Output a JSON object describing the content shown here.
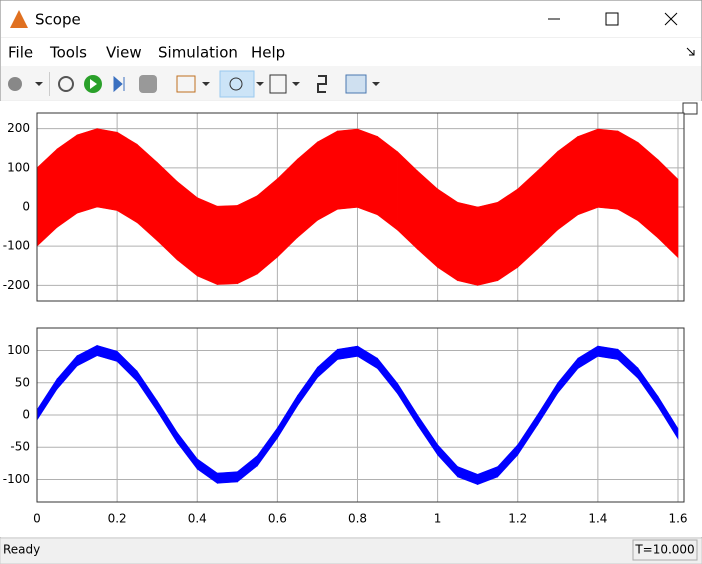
{
  "window": {
    "title": "Scope",
    "menu": [
      "File",
      "Tools",
      "View",
      "Simulation",
      "Help"
    ],
    "status": "Ready",
    "time": "T=10.000"
  },
  "chart_data": [
    {
      "type": "band",
      "grid": true,
      "xlim": [
        0,
        1.615
      ],
      "ylim": [
        -240,
        240
      ],
      "yticks": [
        -200,
        -100,
        0,
        100,
        200
      ],
      "xticks": [
        0,
        0.2,
        0.4,
        0.6,
        0.8,
        1,
        1.2,
        1.4,
        1.6
      ],
      "x": [
        0,
        0.05,
        0.1,
        0.15,
        0.2,
        0.25,
        0.3,
        0.35,
        0.4,
        0.45,
        0.5,
        0.55,
        0.6,
        0.65,
        0.7,
        0.75,
        0.8,
        0.85,
        0.9,
        0.95,
        1,
        1.05,
        1.1,
        1.15,
        1.2,
        1.25,
        1.3,
        1.35,
        1.4,
        1.45,
        1.5,
        1.55,
        1.6
      ],
      "series": [
        {
          "color": "#ff0000",
          "upper": [
            100,
            148,
            184,
            200,
            191,
            160,
            114,
            65,
            24,
            2,
            4,
            29,
            72,
            122,
            166,
            194,
            199,
            180,
            141,
            92,
            46,
            12,
            0,
            12,
            46,
            93,
            142,
            180,
            199,
            194,
            165,
            121,
            71
          ],
          "lower": [
            -100,
            -52,
            -16,
            0,
            -9,
            -40,
            -86,
            -135,
            -176,
            -198,
            -196,
            -171,
            -128,
            -78,
            -34,
            -6,
            -1,
            -20,
            -59,
            -108,
            -154,
            -188,
            -200,
            -188,
            -154,
            -107,
            -58,
            -20,
            -1,
            -6,
            -35,
            -79,
            -129
          ]
        }
      ]
    },
    {
      "type": "band",
      "grid": true,
      "xlim": [
        0,
        1.615
      ],
      "ylim": [
        -135,
        135
      ],
      "yticks": [
        -100,
        -50,
        0,
        50,
        100
      ],
      "xticks": [
        0,
        0.2,
        0.4,
        0.6,
        0.8,
        1,
        1.2,
        1.4,
        1.6
      ],
      "x": [
        0,
        0.05,
        0.1,
        0.15,
        0.2,
        0.25,
        0.3,
        0.35,
        0.4,
        0.45,
        0.5,
        0.55,
        0.6,
        0.65,
        0.7,
        0.75,
        0.8,
        0.85,
        0.9,
        0.95,
        1,
        1.05,
        1.1,
        1.15,
        1.2,
        1.25,
        1.3,
        1.35,
        1.4,
        1.45,
        1.5,
        1.55,
        1.6
      ],
      "series": [
        {
          "color": "#0000ff",
          "upper": [
            8,
            56,
            92,
            108,
            99,
            68,
            22,
            -27,
            -68,
            -90,
            -88,
            -63,
            -20,
            30,
            74,
            102,
            107,
            88,
            49,
            0,
            -46,
            -80,
            -92,
            -80,
            -46,
            1,
            50,
            88,
            107,
            102,
            73,
            29,
            -21
          ],
          "lower": [
            -8,
            40,
            76,
            92,
            83,
            52,
            6,
            -43,
            -84,
            -106,
            -104,
            -79,
            -36,
            14,
            58,
            86,
            91,
            72,
            33,
            -16,
            -62,
            -96,
            -108,
            -96,
            -62,
            -15,
            34,
            72,
            91,
            86,
            57,
            13,
            -37
          ]
        }
      ]
    }
  ]
}
